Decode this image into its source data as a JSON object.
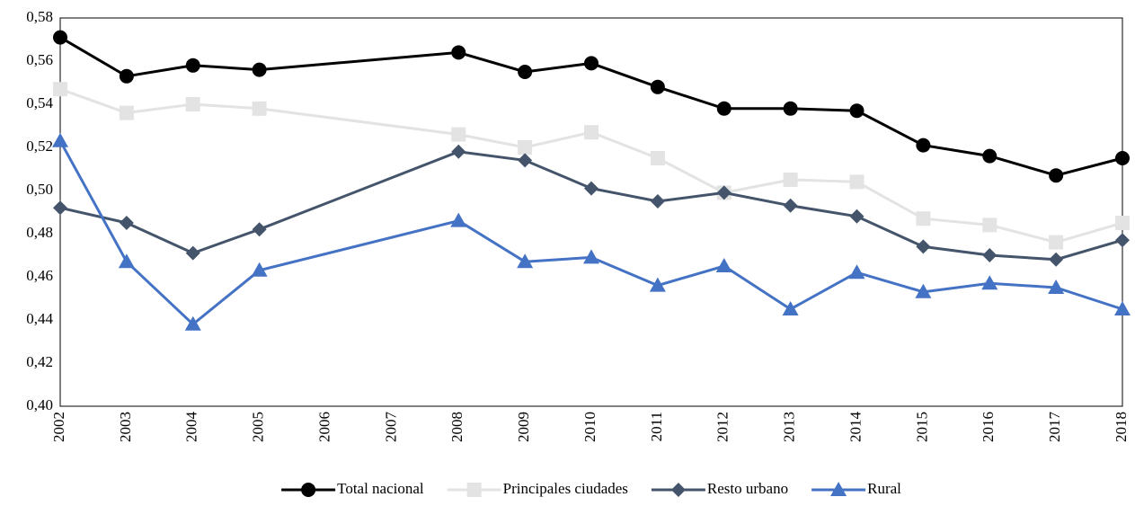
{
  "chart_data": {
    "type": "line",
    "x": [
      2002,
      2003,
      2004,
      2005,
      2008,
      2009,
      2010,
      2011,
      2012,
      2013,
      2014,
      2015,
      2016,
      2017,
      2018
    ],
    "xlim": [
      2002,
      2018
    ],
    "xticks": [
      2002,
      2003,
      2004,
      2005,
      2006,
      2007,
      2008,
      2009,
      2010,
      2011,
      2012,
      2013,
      2014,
      2015,
      2016,
      2017,
      2018
    ],
    "ylim": [
      0.4,
      0.58
    ],
    "yticks": [
      {
        "value": 0.4,
        "label": "0,40"
      },
      {
        "value": 0.42,
        "label": "0,42"
      },
      {
        "value": 0.44,
        "label": "0,44"
      },
      {
        "value": 0.46,
        "label": "0,46"
      },
      {
        "value": 0.48,
        "label": "0,48"
      },
      {
        "value": 0.5,
        "label": "0,50"
      },
      {
        "value": 0.52,
        "label": "0,52"
      },
      {
        "value": 0.54,
        "label": "0,54"
      },
      {
        "value": 0.56,
        "label": "0,56"
      },
      {
        "value": 0.58,
        "label": "0,58"
      }
    ],
    "grid": false,
    "legend": "bottom",
    "series": [
      {
        "name": "Total nacional",
        "color": "#000000",
        "marker": "circle",
        "values": [
          0.571,
          0.553,
          0.558,
          0.556,
          0.564,
          0.555,
          0.559,
          0.548,
          0.538,
          0.538,
          0.537,
          0.521,
          0.516,
          0.507,
          0.515
        ]
      },
      {
        "name": "Principales ciudades",
        "color": "#e3e3e3",
        "marker": "square",
        "values": [
          0.547,
          0.536,
          0.54,
          0.538,
          0.526,
          0.52,
          0.527,
          0.515,
          0.499,
          0.505,
          0.504,
          0.487,
          0.484,
          0.476,
          0.485
        ]
      },
      {
        "name": "Resto urbano",
        "color": "#44546a",
        "marker": "diamond",
        "values": [
          0.492,
          0.485,
          0.471,
          0.482,
          0.518,
          0.514,
          0.501,
          0.495,
          0.499,
          0.493,
          0.488,
          0.474,
          0.47,
          0.468,
          0.477
        ]
      },
      {
        "name": "Rural",
        "color": "#4472c4",
        "marker": "triangle",
        "values": [
          0.523,
          0.467,
          0.438,
          0.463,
          0.486,
          0.467,
          0.469,
          0.456,
          0.465,
          0.445,
          0.462,
          0.453,
          0.457,
          0.455,
          0.445
        ]
      }
    ]
  }
}
